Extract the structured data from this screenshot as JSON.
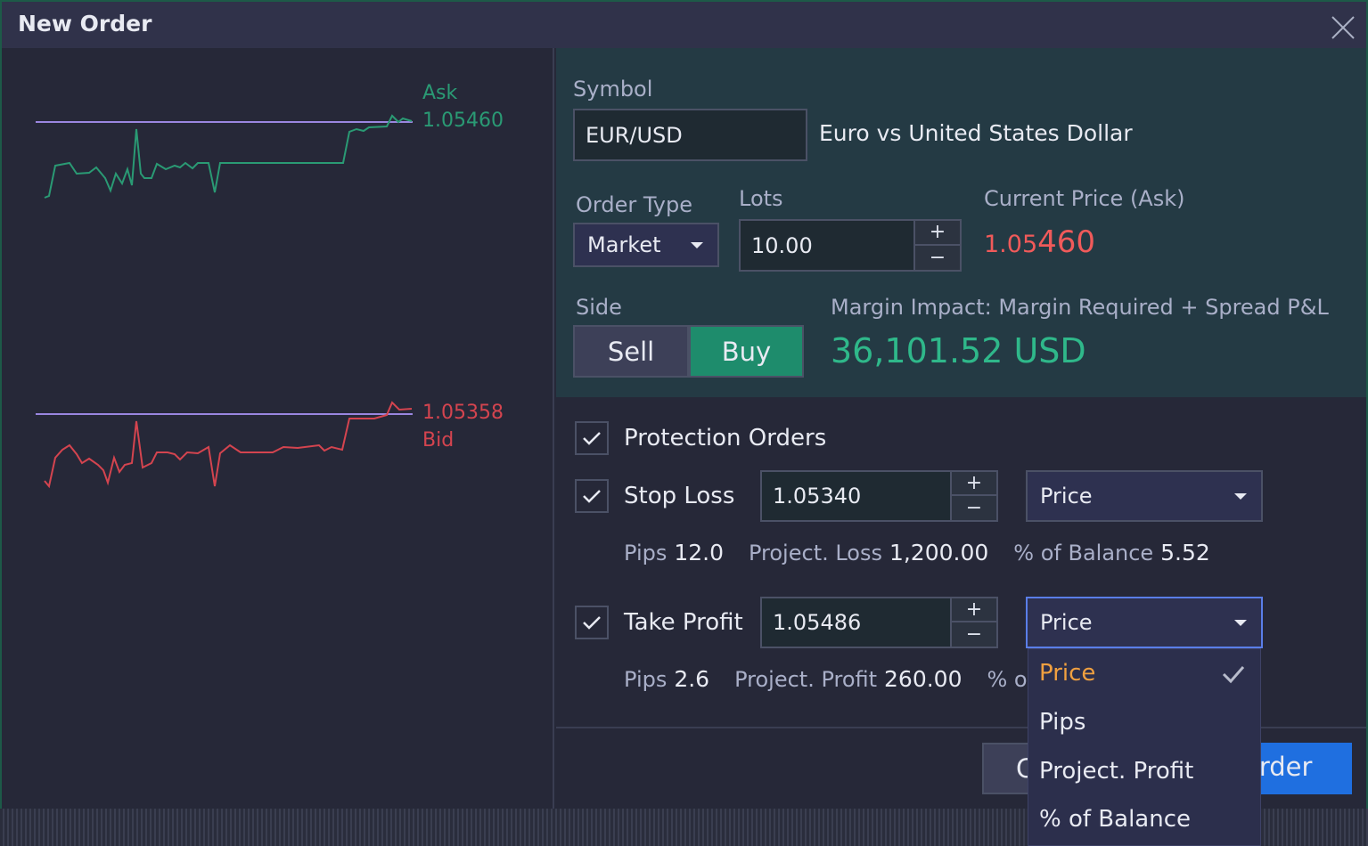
{
  "dialog": {
    "title": "New Order"
  },
  "chart": {
    "ask_label": "Ask",
    "ask_price": "1.05460",
    "bid_price": "1.05358",
    "bid_label": "Bid"
  },
  "form": {
    "symbol_label": "Symbol",
    "symbol": "EUR/USD",
    "symbol_name": "Euro vs United States Dollar",
    "order_type_label": "Order Type",
    "order_type": "Market",
    "lots_label": "Lots",
    "lots": "10.00",
    "price_label": "Current Price (Ask)",
    "price_main": "1.05",
    "price_big": "460",
    "side_label": "Side",
    "sell": "Sell",
    "buy": "Buy",
    "margin_label": "Margin Impact: Margin Required + Spread P&L",
    "margin_value": "36,101.52 USD"
  },
  "protection": {
    "label": "Protection Orders",
    "stop_loss": {
      "label": "Stop Loss",
      "value": "1.05340",
      "mode": "Price",
      "pips_label": "Pips",
      "pips": "12.0",
      "proj_label": "Project. Loss",
      "proj": "1,200.00",
      "bal_label": "% of Balance",
      "bal": "5.52"
    },
    "take_profit": {
      "label": "Take Profit",
      "value": "1.05486",
      "mode": "Price",
      "pips_label": "Pips",
      "pips": "2.6",
      "proj_label": "Project. Profit",
      "proj": "260.00",
      "bal_label": "% o"
    }
  },
  "dropdown": {
    "options": [
      "Price",
      "Pips",
      "Project. Profit",
      "% of Balance"
    ]
  },
  "buttons": {
    "cancel": "C",
    "submit": "Order"
  }
}
